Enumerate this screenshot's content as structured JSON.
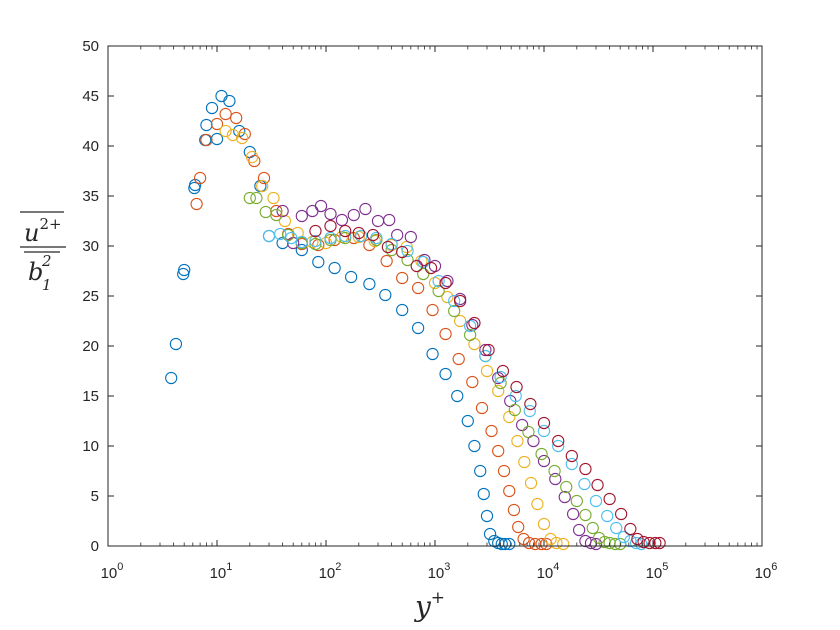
{
  "chart_data": {
    "type": "scatter",
    "title": "",
    "xscale": "log",
    "xlim": [
      1,
      1000000
    ],
    "ylim": [
      0,
      50
    ],
    "grid": false,
    "marker": "open-circle",
    "xticks": [
      {
        "base": "10",
        "exp": "0",
        "value": 1
      },
      {
        "base": "10",
        "exp": "1",
        "value": 10
      },
      {
        "base": "10",
        "exp": "2",
        "value": 100
      },
      {
        "base": "10",
        "exp": "3",
        "value": 1000
      },
      {
        "base": "10",
        "exp": "4",
        "value": 10000
      },
      {
        "base": "10",
        "exp": "5",
        "value": 100000
      },
      {
        "base": "10",
        "exp": "6",
        "value": 1000000
      }
    ],
    "yticks": [
      "0",
      "5",
      "10",
      "15",
      "20",
      "25",
      "30",
      "35",
      "40",
      "45",
      "50"
    ],
    "xlabel": {
      "base": "y",
      "sup": "+"
    },
    "ylabel": {
      "numerator": "u",
      "numerator_sup": "2+",
      "denominator": "b",
      "denominator_sub": "1",
      "denominator_sup": "2"
    },
    "series": [
      {
        "color": "#0072BD",
        "points": [
          [
            3.8,
            16.8
          ],
          [
            4.2,
            20.2
          ],
          [
            4.9,
            27.2
          ],
          [
            5,
            27.6
          ],
          [
            6.2,
            35.8
          ],
          [
            6.3,
            36.1
          ],
          [
            7.8,
            40.6
          ],
          [
            8,
            42.1
          ],
          [
            9,
            43.8
          ],
          [
            10,
            40.7
          ],
          [
            11,
            45
          ],
          [
            13,
            44.5
          ],
          [
            16,
            41.5
          ],
          [
            20,
            39.4
          ],
          [
            25,
            36
          ],
          [
            30,
            31
          ],
          [
            40,
            30.3
          ],
          [
            60,
            29.6
          ],
          [
            85,
            28.4
          ],
          [
            120,
            27.8
          ],
          [
            170,
            26.9
          ],
          [
            250,
            26.2
          ],
          [
            350,
            25.1
          ],
          [
            500,
            23.6
          ],
          [
            700,
            21.8
          ],
          [
            950,
            19.2
          ],
          [
            1250,
            17.2
          ],
          [
            1600,
            15
          ],
          [
            2000,
            12.5
          ],
          [
            2300,
            10
          ],
          [
            2600,
            7.5
          ],
          [
            2800,
            5.2
          ],
          [
            3000,
            3
          ],
          [
            3200,
            1.2
          ],
          [
            3500,
            0.5
          ],
          [
            3800,
            0.3
          ],
          [
            4100,
            0.2
          ],
          [
            4400,
            0.2
          ],
          [
            4800,
            0.2
          ]
        ]
      },
      {
        "color": "#D95319",
        "points": [
          [
            6.5,
            34.2
          ],
          [
            7,
            36.8
          ],
          [
            8,
            40.6
          ],
          [
            10,
            42.2
          ],
          [
            12,
            43.2
          ],
          [
            15,
            42.8
          ],
          [
            18,
            41.2
          ],
          [
            22,
            38.5
          ],
          [
            27,
            36.8
          ],
          [
            35,
            33.5
          ],
          [
            45,
            31.2
          ],
          [
            60,
            30.2
          ],
          [
            85,
            30.1
          ],
          [
            120,
            30.6
          ],
          [
            180,
            30.8
          ],
          [
            250,
            30.1
          ],
          [
            360,
            28.5
          ],
          [
            500,
            26.8
          ],
          [
            700,
            25.8
          ],
          [
            950,
            23.6
          ],
          [
            1250,
            21.2
          ],
          [
            1650,
            18.7
          ],
          [
            2200,
            16.4
          ],
          [
            2700,
            13.8
          ],
          [
            3300,
            11.5
          ],
          [
            3800,
            9.5
          ],
          [
            4300,
            7.5
          ],
          [
            4800,
            5.5
          ],
          [
            5300,
            3.6
          ],
          [
            5800,
            1.9
          ],
          [
            6500,
            0.7
          ],
          [
            7300,
            0.3
          ],
          [
            8300,
            0.2
          ],
          [
            9500,
            0.2
          ],
          [
            10500,
            0.2
          ]
        ]
      },
      {
        "color": "#EDB120",
        "points": [
          [
            12,
            41.5
          ],
          [
            14,
            41.1
          ],
          [
            17,
            40.8
          ],
          [
            21,
            38.9
          ],
          [
            26,
            36
          ],
          [
            33,
            34.8
          ],
          [
            42,
            32.5
          ],
          [
            55,
            31.3
          ],
          [
            75,
            30.4
          ],
          [
            100,
            30.3
          ],
          [
            140,
            30.9
          ],
          [
            200,
            30.9
          ],
          [
            280,
            30.5
          ],
          [
            400,
            30.1
          ],
          [
            550,
            29.9
          ],
          [
            750,
            28.5
          ],
          [
            1000,
            26.3
          ],
          [
            1300,
            24.9
          ],
          [
            1700,
            22.5
          ],
          [
            2300,
            20.2
          ],
          [
            3000,
            17.5
          ],
          [
            3800,
            15.5
          ],
          [
            4800,
            12.9
          ],
          [
            5700,
            10.5
          ],
          [
            6600,
            8.4
          ],
          [
            7600,
            6.3
          ],
          [
            8700,
            4.2
          ],
          [
            10000,
            2.2
          ],
          [
            11500,
            0.7
          ],
          [
            13000,
            0.3
          ],
          [
            15000,
            0.2
          ]
        ]
      },
      {
        "color": "#7E2F8E",
        "points": [
          [
            40,
            33.5
          ],
          [
            50,
            30.3
          ],
          [
            60,
            33
          ],
          [
            75,
            33.5
          ],
          [
            90,
            34
          ],
          [
            110,
            33.2
          ],
          [
            140,
            32.6
          ],
          [
            180,
            33.1
          ],
          [
            230,
            33.7
          ],
          [
            300,
            32.5
          ],
          [
            380,
            32.6
          ],
          [
            450,
            31.1
          ],
          [
            600,
            30.9
          ],
          [
            800,
            28.6
          ],
          [
            1000,
            28
          ],
          [
            1300,
            26.5
          ],
          [
            1700,
            24.7
          ],
          [
            2200,
            22.1
          ],
          [
            2900,
            19.6
          ],
          [
            3800,
            16.8
          ],
          [
            4900,
            14.5
          ],
          [
            6300,
            12.1
          ],
          [
            8000,
            10.5
          ],
          [
            10000,
            8.5
          ],
          [
            12700,
            6.7
          ],
          [
            15500,
            4.9
          ],
          [
            18500,
            3.2
          ],
          [
            21000,
            1.6
          ],
          [
            24000,
            0.5
          ],
          [
            27000,
            0.3
          ],
          [
            30000,
            0.2
          ]
        ]
      },
      {
        "color": "#77AC30",
        "points": [
          [
            20,
            34.8
          ],
          [
            23,
            34.8
          ],
          [
            28,
            33.4
          ],
          [
            35,
            33.1
          ],
          [
            45,
            31.1
          ],
          [
            60,
            30.3
          ],
          [
            80,
            30.2
          ],
          [
            110,
            30.6
          ],
          [
            150,
            30.8
          ],
          [
            210,
            31
          ],
          [
            290,
            30.6
          ],
          [
            400,
            29.6
          ],
          [
            560,
            28.6
          ],
          [
            780,
            27.2
          ],
          [
            1080,
            25.5
          ],
          [
            1500,
            23.5
          ],
          [
            2100,
            21.1
          ],
          [
            2900,
            19
          ],
          [
            4000,
            16.3
          ],
          [
            5400,
            13.6
          ],
          [
            7200,
            11.4
          ],
          [
            9500,
            9.2
          ],
          [
            12500,
            7.5
          ],
          [
            16000,
            5.9
          ],
          [
            20000,
            4.5
          ],
          [
            24000,
            3.1
          ],
          [
            28000,
            1.8
          ],
          [
            32000,
            0.8
          ],
          [
            36000,
            0.4
          ],
          [
            40000,
            0.3
          ],
          [
            45000,
            0.2
          ],
          [
            50000,
            0.2
          ]
        ]
      },
      {
        "color": "#4DBEEE",
        "points": [
          [
            30,
            31
          ],
          [
            38,
            31.2
          ],
          [
            48,
            30.8
          ],
          [
            60,
            30.4
          ],
          [
            80,
            30.5
          ],
          [
            110,
            30.8
          ],
          [
            150,
            31
          ],
          [
            210,
            31
          ],
          [
            290,
            30.8
          ],
          [
            400,
            30.2
          ],
          [
            560,
            29.5
          ],
          [
            780,
            28.4
          ],
          [
            1080,
            26.5
          ],
          [
            1500,
            24.5
          ],
          [
            2100,
            22
          ],
          [
            2900,
            19
          ],
          [
            4000,
            16.9
          ],
          [
            5500,
            15
          ],
          [
            7400,
            13.5
          ],
          [
            10000,
            11.5
          ],
          [
            13500,
            10
          ],
          [
            18000,
            8.2
          ],
          [
            23500,
            6.2
          ],
          [
            30000,
            4.5
          ],
          [
            38000,
            3
          ],
          [
            46000,
            1.8
          ],
          [
            54000,
            0.9
          ],
          [
            62000,
            0.5
          ],
          [
            70000,
            0.3
          ],
          [
            78000,
            0.2
          ]
        ]
      },
      {
        "color": "#A2142F",
        "points": [
          [
            80,
            31.5
          ],
          [
            110,
            32
          ],
          [
            150,
            31.5
          ],
          [
            200,
            31.3
          ],
          [
            270,
            31.1
          ],
          [
            370,
            29.9
          ],
          [
            500,
            29.4
          ],
          [
            680,
            28
          ],
          [
            920,
            27.8
          ],
          [
            1250,
            26.3
          ],
          [
            1700,
            24.5
          ],
          [
            2300,
            22.3
          ],
          [
            3100,
            19.6
          ],
          [
            4200,
            17.5
          ],
          [
            5600,
            15.9
          ],
          [
            7500,
            14.2
          ],
          [
            10000,
            12.3
          ],
          [
            13500,
            10.5
          ],
          [
            18000,
            9
          ],
          [
            24000,
            7.7
          ],
          [
            31000,
            6.1
          ],
          [
            40000,
            4.7
          ],
          [
            51000,
            3.2
          ],
          [
            62000,
            1.7
          ],
          [
            72000,
            0.7
          ],
          [
            82000,
            0.4
          ],
          [
            93000,
            0.3
          ],
          [
            105000,
            0.3
          ],
          [
            115000,
            0.3
          ]
        ]
      }
    ]
  }
}
